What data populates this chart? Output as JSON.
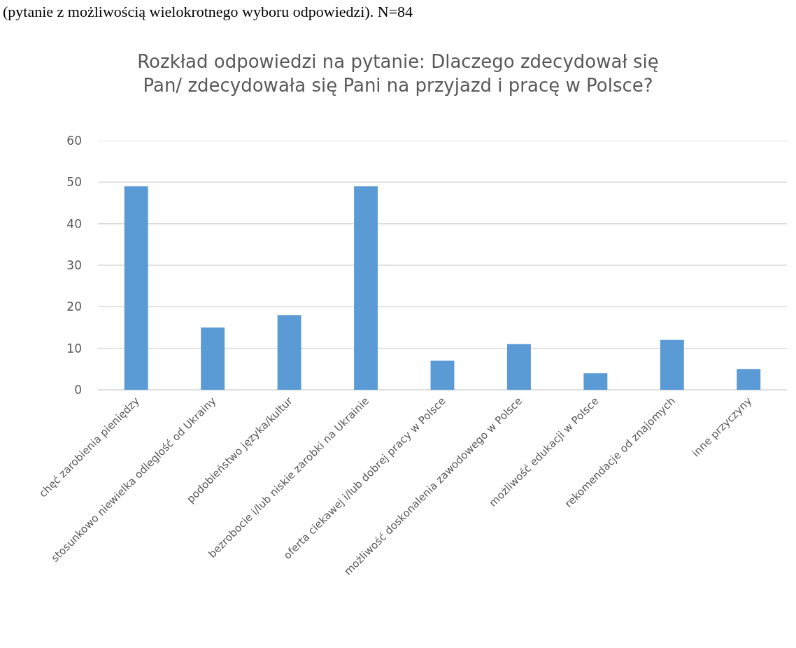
{
  "chart_data": {
    "type": "bar",
    "title": "Rozkład odpowiedzi na pytanie: Dlaczego zdecydował się\nPan/ zdecydowała się Pani na przyjazd i pracę w Polsce?",
    "annotations": [
      "(pytanie z możliwością wielokrotnego wyboru odpowiedzi). N=84"
    ],
    "categories": [
      "chęć zarobienia pieniędzy",
      "stosunkowo niewielka odległość od Ukrainy",
      "podobieństwo języka/kultur",
      "bezrobocie i/lub niskie zarobki na Ukrainie",
      "oferta ciekawej i/lub dobrej pracy w Polsce",
      "możliwość doskonalenia zawodowego w Polsce",
      "możliwość edukacji w Polsce",
      "rekomendacje od znajomych",
      "inne przyczyny"
    ],
    "values": [
      49,
      15,
      18,
      49,
      7,
      11,
      4,
      12,
      5
    ],
    "color": "#5b9bd5",
    "ylim": [
      0,
      60
    ],
    "yticks": [
      0,
      10,
      20,
      30,
      40,
      50,
      60
    ],
    "grid": "y"
  }
}
